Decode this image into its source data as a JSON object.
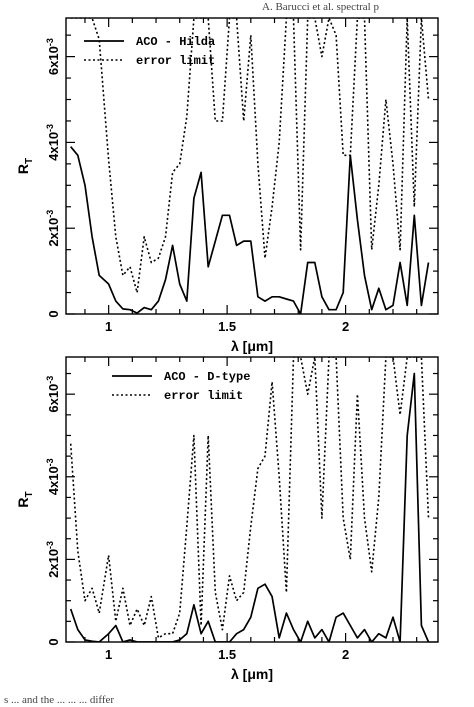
{
  "page": {
    "header_fragment": "A. Barucci et al. spectral p",
    "footer_fragment": "s ... and the ... ... ... differ"
  },
  "chart_data": [
    {
      "type": "line",
      "title": "",
      "xlabel": "λ [μm]",
      "ylabel": "R_T",
      "xlim": [
        0.82,
        2.39
      ],
      "ylim": [
        0,
        0.0069
      ],
      "x_ticks": [
        {
          "value": 1,
          "label": "1"
        },
        {
          "value": 1.5,
          "label": "1.5"
        },
        {
          "value": 2,
          "label": "2"
        }
      ],
      "y_ticks": [
        {
          "value": 0,
          "label": "0"
        },
        {
          "value": 0.002,
          "label": "2x10",
          "exp": "-3"
        },
        {
          "value": 0.004,
          "label": "4x10",
          "exp": "-3"
        },
        {
          "value": 0.006,
          "label": "6x10",
          "exp": "-3"
        }
      ],
      "legend_position": "top-left",
      "grid": false,
      "series": [
        {
          "name": "ACO - Hilda",
          "style": "solid",
          "x": [
            0.84,
            0.87,
            0.9,
            0.93,
            0.96,
            1.0,
            1.03,
            1.06,
            1.09,
            1.12,
            1.15,
            1.18,
            1.21,
            1.24,
            1.27,
            1.3,
            1.33,
            1.36,
            1.39,
            1.42,
            1.45,
            1.48,
            1.51,
            1.54,
            1.57,
            1.6,
            1.63,
            1.66,
            1.69,
            1.72,
            1.75,
            1.78,
            1.81,
            1.84,
            1.87,
            1.9,
            1.93,
            1.96,
            1.99,
            2.02,
            2.05,
            2.08,
            2.11,
            2.14,
            2.17,
            2.2,
            2.23,
            2.26,
            2.29,
            2.32,
            2.35
          ],
          "y": [
            0.0039,
            0.0037,
            0.003,
            0.0018,
            0.0009,
            0.0007,
            0.0003,
            0.00012,
            0.0001,
            2e-05,
            0.00015,
            0.0001,
            0.0003,
            0.0008,
            0.0016,
            0.0007,
            0.0003,
            0.0027,
            0.0033,
            0.0011,
            0.0017,
            0.0023,
            0.0023,
            0.0016,
            0.0017,
            0.0017,
            0.0004,
            0.0003,
            0.0004,
            0.0004,
            0.00035,
            0.0003,
            0.0,
            0.0012,
            0.0012,
            0.0004,
            0.0001,
            0.0001,
            0.0005,
            0.0037,
            0.0022,
            0.0009,
            0.0001,
            0.0006,
            0.0001,
            0.0002,
            0.0012,
            0.0002,
            0.0023,
            0.0002,
            0.0012
          ]
        },
        {
          "name": "error limit",
          "style": "dotted",
          "x": [
            0.84,
            0.87,
            0.9,
            0.93,
            0.96,
            1.0,
            1.03,
            1.06,
            1.09,
            1.12,
            1.15,
            1.18,
            1.21,
            1.24,
            1.27,
            1.3,
            1.33,
            1.36,
            1.39,
            1.42,
            1.45,
            1.48,
            1.51,
            1.54,
            1.57,
            1.6,
            1.63,
            1.66,
            1.69,
            1.72,
            1.75,
            1.78,
            1.81,
            1.84,
            1.87,
            1.9,
            1.93,
            1.96,
            1.99,
            2.02,
            2.05,
            2.08,
            2.11,
            2.14,
            2.17,
            2.2,
            2.23,
            2.26,
            2.29,
            2.32,
            2.35
          ],
          "y": [
            0.0069,
            0.0069,
            0.0069,
            0.0069,
            0.0064,
            0.0036,
            0.0018,
            0.0009,
            0.0011,
            0.0005,
            0.0018,
            0.0012,
            0.0013,
            0.0018,
            0.0033,
            0.0035,
            0.0046,
            0.0069,
            0.0069,
            0.0069,
            0.0045,
            0.0045,
            0.0069,
            0.0069,
            0.0045,
            0.0065,
            0.0035,
            0.0013,
            0.0025,
            0.004,
            0.0069,
            0.0069,
            0.0015,
            0.0069,
            0.0069,
            0.006,
            0.0069,
            0.0065,
            0.0037,
            0.0037,
            0.0069,
            0.0069,
            0.0015,
            0.003,
            0.005,
            0.0035,
            0.0015,
            0.0069,
            0.0025,
            0.0069,
            0.005
          ]
        }
      ]
    },
    {
      "type": "line",
      "title": "",
      "xlabel": "λ [μm]",
      "ylabel": "R_T",
      "xlim": [
        0.82,
        2.39
      ],
      "ylim": [
        0,
        0.0069
      ],
      "x_ticks": [
        {
          "value": 1,
          "label": "1"
        },
        {
          "value": 1.5,
          "label": "1.5"
        },
        {
          "value": 2,
          "label": "2"
        }
      ],
      "y_ticks": [
        {
          "value": 0,
          "label": "0"
        },
        {
          "value": 0.002,
          "label": "2x10",
          "exp": "-3"
        },
        {
          "value": 0.004,
          "label": "4x10",
          "exp": "-3"
        },
        {
          "value": 0.006,
          "label": "6x10",
          "exp": "-3"
        }
      ],
      "legend_position": "top-center",
      "grid": false,
      "series": [
        {
          "name": "ACO - D-type",
          "style": "solid",
          "x": [
            0.84,
            0.87,
            0.9,
            0.93,
            0.96,
            1.0,
            1.03,
            1.06,
            1.09,
            1.12,
            1.15,
            1.18,
            1.21,
            1.24,
            1.27,
            1.3,
            1.33,
            1.36,
            1.39,
            1.42,
            1.45,
            1.48,
            1.51,
            1.54,
            1.57,
            1.6,
            1.63,
            1.66,
            1.69,
            1.72,
            1.75,
            1.78,
            1.81,
            1.84,
            1.87,
            1.9,
            1.93,
            1.96,
            1.99,
            2.02,
            2.05,
            2.08,
            2.11,
            2.14,
            2.17,
            2.2,
            2.23,
            2.26,
            2.29,
            2.32,
            2.35
          ],
          "y": [
            0.0008,
            0.0003,
            5e-05,
            2e-05,
            0.0,
            0.0002,
            0.0004,
            0.0,
            5e-05,
            0.0,
            0.0,
            0.0,
            0.0,
            0.0,
            0.0,
            5e-05,
            0.0002,
            0.0009,
            0.0002,
            0.0005,
            0.0,
            0.0,
            0.0,
            0.0002,
            0.0003,
            0.0006,
            0.0013,
            0.0014,
            0.0011,
            0.0001,
            0.0007,
            0.0003,
            0.0,
            0.0005,
            0.0001,
            0.0003,
            0.0,
            0.0006,
            0.0007,
            0.0004,
            0.0001,
            0.0003,
            0.0,
            0.0002,
            0.0001,
            0.0006,
            0.0,
            0.005,
            0.0065,
            0.0004,
            0.0
          ]
        },
        {
          "name": "error limit",
          "style": "dotted",
          "x": [
            0.84,
            0.87,
            0.9,
            0.93,
            0.96,
            1.0,
            1.03,
            1.06,
            1.09,
            1.12,
            1.15,
            1.18,
            1.21,
            1.24,
            1.27,
            1.3,
            1.33,
            1.36,
            1.39,
            1.42,
            1.45,
            1.48,
            1.51,
            1.54,
            1.57,
            1.6,
            1.63,
            1.66,
            1.69,
            1.72,
            1.75,
            1.78,
            1.81,
            1.84,
            1.87,
            1.9,
            1.93,
            1.96,
            1.99,
            2.02,
            2.05,
            2.08,
            2.11,
            2.14,
            2.17,
            2.2,
            2.23,
            2.26,
            2.29,
            2.32,
            2.35
          ],
          "y": [
            0.0048,
            0.0022,
            0.001,
            0.0013,
            0.0007,
            0.0021,
            0.0005,
            0.0013,
            0.0004,
            0.0008,
            0.0004,
            0.0011,
            0.0001,
            0.0002,
            0.0002,
            0.0007,
            0.0028,
            0.005,
            0.0004,
            0.005,
            0.0012,
            0.0003,
            0.0016,
            0.001,
            0.0012,
            0.0028,
            0.0042,
            0.0045,
            0.0063,
            0.004,
            0.0012,
            0.0069,
            0.0069,
            0.006,
            0.0069,
            0.003,
            0.0069,
            0.0069,
            0.003,
            0.002,
            0.006,
            0.003,
            0.0017,
            0.0035,
            0.0069,
            0.0069,
            0.0055,
            0.0069,
            0.0069,
            0.0069,
            0.003
          ]
        }
      ]
    }
  ]
}
